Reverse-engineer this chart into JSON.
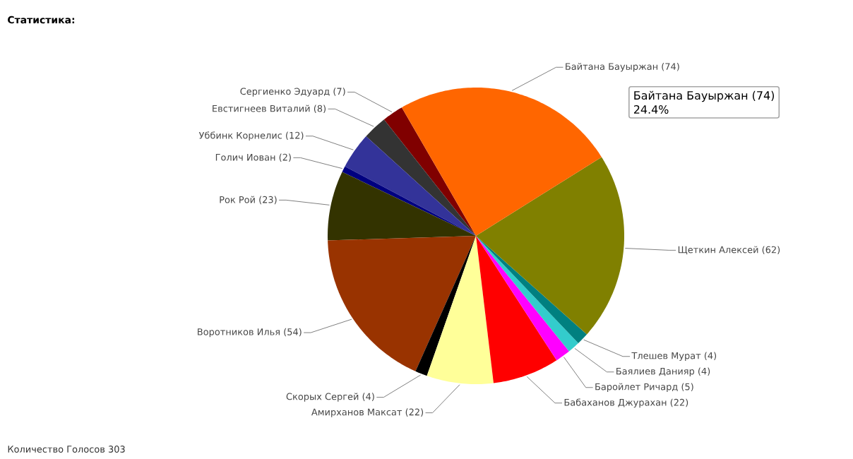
{
  "chart_data": {
    "type": "pie",
    "title": "Статистика:",
    "categories": [
      "Байтана Бауыржан",
      "Щеткин Алексей",
      "Тлешев Мурат",
      "Баялиев Данияр",
      "Баройлет Ричард",
      "Бабаханов Джурахан",
      "Амирханов Максат",
      "Скорых Сергей",
      "Воротников Илья",
      "Рок Рой",
      "Голич Иован",
      "Уббинк Корнелис",
      "Евстигнеев Виталий",
      "Сергиенко Эдуард"
    ],
    "values": [
      74,
      62,
      4,
      4,
      5,
      22,
      22,
      4,
      54,
      23,
      2,
      12,
      8,
      7
    ],
    "value_labels": [
      "(74)",
      "(62)",
      "(4)",
      "(4)",
      "(5)",
      "(22)",
      "(22)",
      "(4)",
      "(54)",
      "(23)",
      "(2)",
      "(12)",
      "(8)",
      "(7)"
    ],
    "colors": [
      "#ff6600",
      "#808000",
      "#008080",
      "#33cccc",
      "#ff00ff",
      "#ff0000",
      "#ffff99",
      "#000000",
      "#993300",
      "#333300",
      "#000080",
      "#333399",
      "#333333",
      "#800000"
    ],
    "annotations": [
      "Байтана Бауыржан (74)",
      "24.4%",
      "Количество Голосов   303"
    ]
  }
}
